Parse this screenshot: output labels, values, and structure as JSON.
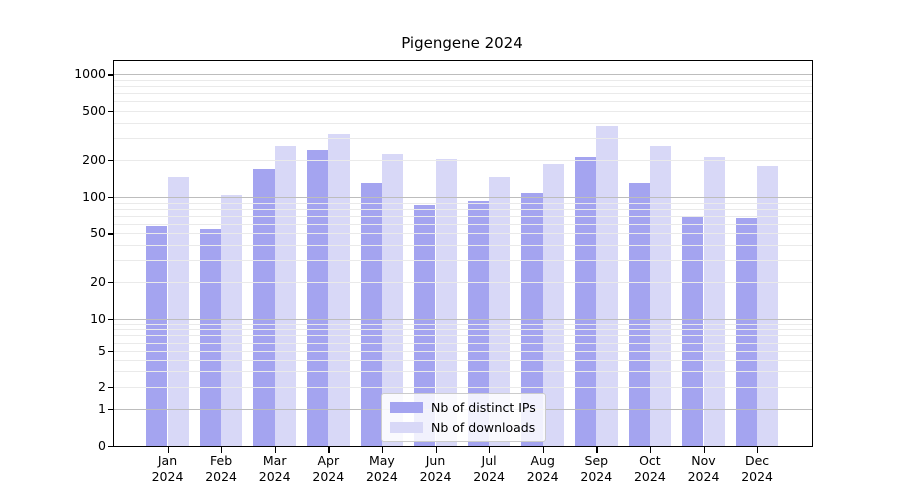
{
  "title": "Pigengene 2024",
  "legend": {
    "items": [
      {
        "label": "Nb of distinct IPs",
        "color": "#a4a4f0"
      },
      {
        "label": "Nb of downloads",
        "color": "#d8d8f7"
      }
    ]
  },
  "chart_data": {
    "type": "bar",
    "title": "Pigengene 2024",
    "categories": [
      "Jan",
      "Feb",
      "Mar",
      "Apr",
      "May",
      "Jun",
      "Jul",
      "Aug",
      "Sep",
      "Oct",
      "Nov",
      "Dec"
    ],
    "category_year": "2024",
    "series": [
      {
        "name": "Nb of distinct IPs",
        "color": "#a4a4f0",
        "values": [
          57,
          54,
          169,
          243,
          129,
          86,
          93,
          107,
          211,
          129,
          70,
          67
        ]
      },
      {
        "name": "Nb of downloads",
        "color": "#d8d8f7",
        "values": [
          145,
          103,
          262,
          326,
          226,
          203,
          146,
          185,
          376,
          262,
          213,
          178
        ]
      }
    ],
    "xlabel": "",
    "ylabel": "",
    "yscale": "symlog",
    "yticks": [
      0,
      1,
      2,
      5,
      10,
      20,
      50,
      100,
      200,
      500,
      1000
    ],
    "ylim": [
      0,
      1280
    ],
    "grid": "on",
    "legend_position": "lower center"
  }
}
